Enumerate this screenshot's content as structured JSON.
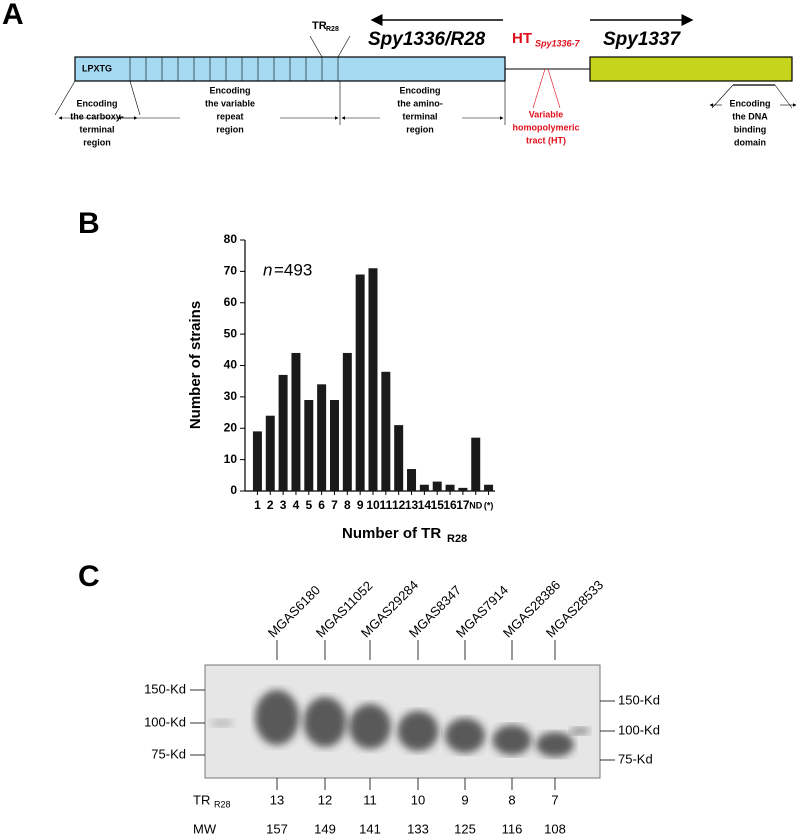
{
  "panel_a": {
    "label": "A",
    "tr_label": "TR",
    "tr_sub": "R28",
    "gene_left": "Spy1336/R28",
    "ht_label": "HT",
    "ht_sub": "Spy1336-7",
    "gene_right": "Spy1337",
    "motif": "LPXTG",
    "regions": [
      [
        "Encoding",
        "the carboxy-",
        "terminal",
        "region"
      ],
      [
        "Encoding",
        "the variable",
        "repeat",
        "region"
      ],
      [
        "Encoding",
        "the amino-",
        "terminal",
        "region"
      ],
      [
        "Encoding",
        "the DNA",
        "binding",
        "domain"
      ]
    ],
    "ht_note": [
      "Variable",
      "homopolymeric",
      "tract (HT)"
    ]
  },
  "chart_data": {
    "type": "bar",
    "label": "B",
    "annotation_var": "n",
    "annotation_text": "=493",
    "x_label": "Number of TR",
    "x_label_sub": "R28",
    "y_label": "Number of strains",
    "categories": [
      "1",
      "2",
      "3",
      "4",
      "5",
      "6",
      "7",
      "8",
      "9",
      "10",
      "11",
      "12",
      "13",
      "14",
      "15",
      "16",
      "17",
      "ND",
      "(*)"
    ],
    "values": [
      19,
      24,
      37,
      44,
      29,
      34,
      29,
      44,
      69,
      71,
      38,
      21,
      7,
      2,
      3,
      2,
      1,
      17,
      2
    ],
    "color": "#1a1a1a",
    "ylim": [
      0,
      80
    ],
    "yticks": [
      0,
      10,
      20,
      30,
      40,
      50,
      60,
      70,
      80
    ]
  },
  "panel_c": {
    "label": "C",
    "strains": [
      "MGAS6180",
      "MGAS11052",
      "MGAS29284",
      "MGAS8347",
      "MGAS7914",
      "MGAS28386",
      "MGAS28533"
    ],
    "markers_left": [
      "150-Kd",
      "100-Kd",
      "75-Kd"
    ],
    "markers_right": [
      "150-Kd",
      "100-Kd",
      "75-Kd"
    ],
    "tr_label": "TR",
    "tr_sub": "R28",
    "tr_values": [
      "13",
      "12",
      "11",
      "10",
      "9",
      "8",
      "7"
    ],
    "mw_label": "MW",
    "mw_values": [
      "157",
      "149",
      "141",
      "133",
      "125",
      "116",
      "108"
    ]
  }
}
